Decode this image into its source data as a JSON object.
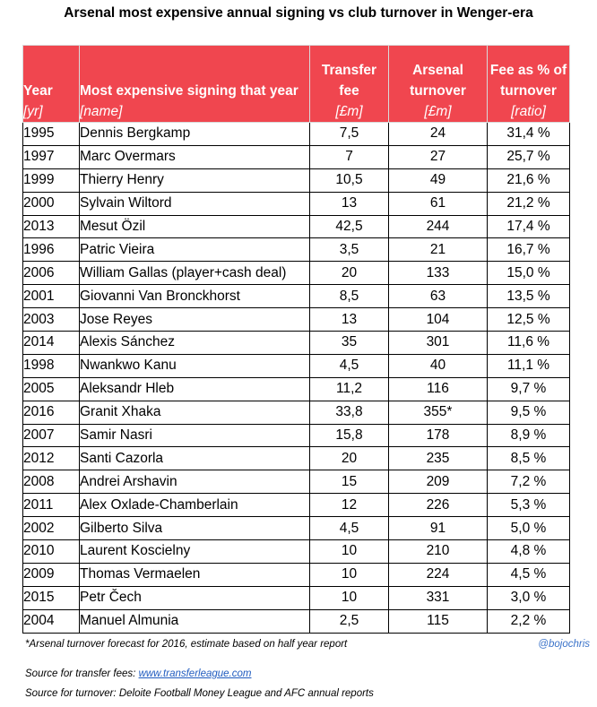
{
  "title": "Arsenal most expensive annual signing vs club turnover in Wenger-era",
  "columns": [
    {
      "label": "Year",
      "unit": "[yr]"
    },
    {
      "label": "Most expensive signing that year",
      "unit": "[name]"
    },
    {
      "label": "Transfer fee",
      "unit": "[£m]"
    },
    {
      "label": "Arsenal turnover",
      "unit": "[£m]"
    },
    {
      "label": "Fee as % of turnover",
      "unit": "[ratio]"
    }
  ],
  "rows": [
    {
      "year": "1995",
      "name": "Dennis Bergkamp",
      "fee": "7,5",
      "turnover": "24",
      "pct": "31,4 %"
    },
    {
      "year": "1997",
      "name": "Marc Overmars",
      "fee": "7",
      "turnover": "27",
      "pct": "25,7 %"
    },
    {
      "year": "1999",
      "name": "Thierry Henry",
      "fee": "10,5",
      "turnover": "49",
      "pct": "21,6 %"
    },
    {
      "year": "2000",
      "name": "Sylvain Wiltord",
      "fee": "13",
      "turnover": "61",
      "pct": "21,2 %"
    },
    {
      "year": "2013",
      "name": "Mesut  Özil",
      "fee": "42,5",
      "turnover": "244",
      "pct": "17,4 %"
    },
    {
      "year": "1996",
      "name": "Patric Vieira",
      "fee": "3,5",
      "turnover": "21",
      "pct": "16,7 %"
    },
    {
      "year": "2006",
      "name": "William Gallas (player+cash deal)",
      "fee": "20",
      "turnover": "133",
      "pct": "15,0 %"
    },
    {
      "year": "2001",
      "name": "Giovanni Van Bronckhorst",
      "fee": "8,5",
      "turnover": "63",
      "pct": "13,5 %"
    },
    {
      "year": "2003",
      "name": "Jose Reyes",
      "fee": "13",
      "turnover": "104",
      "pct": "12,5 %"
    },
    {
      "year": "2014",
      "name": "Alexis Sánchez",
      "fee": "35",
      "turnover": "301",
      "pct": "11,6 %"
    },
    {
      "year": "1998",
      "name": "Nwankwo Kanu",
      "fee": "4,5",
      "turnover": "40",
      "pct": "11,1 %"
    },
    {
      "year": "2005",
      "name": "Aleksandr Hleb",
      "fee": "11,2",
      "turnover": "116",
      "pct": "9,7 %"
    },
    {
      "year": "2016",
      "name": "Granit Xhaka",
      "fee": "33,8",
      "turnover": "355*",
      "pct": "9,5 %"
    },
    {
      "year": "2007",
      "name": "Samir Nasri",
      "fee": "15,8",
      "turnover": "178",
      "pct": "8,9 %"
    },
    {
      "year": "2012",
      "name": "Santi Cazorla",
      "fee": "20",
      "turnover": "235",
      "pct": "8,5 %"
    },
    {
      "year": "2008",
      "name": "Andrei Arshavin",
      "fee": "15",
      "turnover": "209",
      "pct": "7,2 %"
    },
    {
      "year": "2011",
      "name": "Alex Oxlade-Chamberlain",
      "fee": "12",
      "turnover": "226",
      "pct": "5,3 %"
    },
    {
      "year": "2002",
      "name": "Gilberto Silva",
      "fee": "4,5",
      "turnover": "91",
      "pct": "5,0 %"
    },
    {
      "year": "2010",
      "name": "Laurent Koscielny",
      "fee": "10",
      "turnover": "210",
      "pct": "4,8 %"
    },
    {
      "year": "2009",
      "name": "Thomas Vermaelen",
      "fee": "10",
      "turnover": "224",
      "pct": "4,5 %"
    },
    {
      "year": "2015",
      "name": "Petr Čech",
      "fee": "10",
      "turnover": "331",
      "pct": "3,0 %"
    },
    {
      "year": "2004",
      "name": "Manuel Almunia",
      "fee": "2,5",
      "turnover": "115",
      "pct": "2,2 %"
    }
  ],
  "footnote": "*Arsenal turnover forecast for 2016, estimate based on half year report",
  "handle": "@bojochris",
  "source_fees_label": "Source for transfer fees: ",
  "source_fees_link": "www.transferleague.com",
  "source_turnover": "Source for turnover: Deloite Football Money League and AFC annual reports",
  "colors": {
    "header_bg": "#f0464f",
    "header_text": "#ffffff",
    "link": "#1f5bbf",
    "handle": "#3b73c9"
  }
}
